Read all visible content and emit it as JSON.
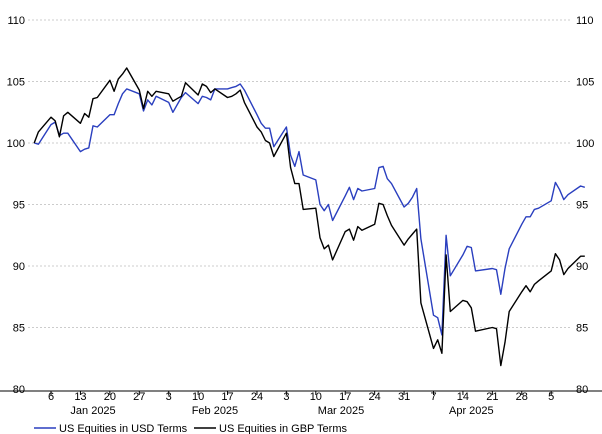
{
  "chart_data": {
    "type": "line",
    "title": "",
    "xlabel": "",
    "ylabel": "",
    "ylim": [
      80,
      110
    ],
    "yticks": [
      80,
      85,
      90,
      95,
      100,
      105,
      110
    ],
    "grid": true,
    "legend": "bottom-left",
    "x_range": [
      "2025-01-01",
      "2025-05-09"
    ],
    "x_ticks": [
      {
        "date": "2025-01-06",
        "label": "6"
      },
      {
        "date": "2025-01-13",
        "label": "13"
      },
      {
        "date": "2025-01-20",
        "label": "20"
      },
      {
        "date": "2025-01-27",
        "label": "27"
      },
      {
        "date": "2025-02-03",
        "label": "3"
      },
      {
        "date": "2025-02-10",
        "label": "10"
      },
      {
        "date": "2025-02-17",
        "label": "17"
      },
      {
        "date": "2025-02-24",
        "label": "24"
      },
      {
        "date": "2025-03-03",
        "label": "3"
      },
      {
        "date": "2025-03-10",
        "label": "10"
      },
      {
        "date": "2025-03-17",
        "label": "17"
      },
      {
        "date": "2025-03-24",
        "label": "24"
      },
      {
        "date": "2025-03-31",
        "label": "31"
      },
      {
        "date": "2025-04-07",
        "label": "7"
      },
      {
        "date": "2025-04-14",
        "label": "14"
      },
      {
        "date": "2025-04-21",
        "label": "21"
      },
      {
        "date": "2025-04-28",
        "label": "28"
      },
      {
        "date": "2025-05-05",
        "label": "5"
      }
    ],
    "month_labels": [
      {
        "date": "2025-01-16",
        "label": "Jan 2025"
      },
      {
        "date": "2025-02-14",
        "label": "Feb 2025"
      },
      {
        "date": "2025-03-16",
        "label": "Mar 2025"
      },
      {
        "date": "2025-04-16",
        "label": "Apr 2025"
      }
    ],
    "series": [
      {
        "name": "US Equities in USD Terms",
        "color": "#2a3fbf",
        "points": [
          [
            "2025-01-02",
            100.0
          ],
          [
            "2025-01-03",
            99.9
          ],
          [
            "2025-01-06",
            101.5
          ],
          [
            "2025-01-07",
            101.7
          ],
          [
            "2025-01-08",
            100.6
          ],
          [
            "2025-01-09",
            100.8
          ],
          [
            "2025-01-10",
            100.8
          ],
          [
            "2025-01-13",
            99.3
          ],
          [
            "2025-01-14",
            99.5
          ],
          [
            "2025-01-15",
            99.6
          ],
          [
            "2025-01-16",
            101.4
          ],
          [
            "2025-01-17",
            101.3
          ],
          [
            "2025-01-20",
            102.3
          ],
          [
            "2025-01-21",
            102.3
          ],
          [
            "2025-01-22",
            103.2
          ],
          [
            "2025-01-23",
            104.0
          ],
          [
            "2025-01-24",
            104.4
          ],
          [
            "2025-01-27",
            104.0
          ],
          [
            "2025-01-28",
            102.6
          ],
          [
            "2025-01-29",
            103.5
          ],
          [
            "2025-01-30",
            103.1
          ],
          [
            "2025-01-31",
            103.8
          ],
          [
            "2025-02-03",
            103.3
          ],
          [
            "2025-02-04",
            102.5
          ],
          [
            "2025-02-05",
            103.1
          ],
          [
            "2025-02-06",
            103.7
          ],
          [
            "2025-02-07",
            104.1
          ],
          [
            "2025-02-10",
            103.2
          ],
          [
            "2025-02-11",
            103.8
          ],
          [
            "2025-02-12",
            103.7
          ],
          [
            "2025-02-13",
            103.5
          ],
          [
            "2025-02-14",
            104.4
          ],
          [
            "2025-02-17",
            104.4
          ],
          [
            "2025-02-18",
            104.5
          ],
          [
            "2025-02-19",
            104.6
          ],
          [
            "2025-02-20",
            104.8
          ],
          [
            "2025-02-21",
            104.3
          ],
          [
            "2025-02-24",
            102.3
          ],
          [
            "2025-02-25",
            101.6
          ],
          [
            "2025-02-26",
            101.2
          ],
          [
            "2025-02-27",
            101.2
          ],
          [
            "2025-02-28",
            99.7
          ],
          [
            "2025-03-03",
            101.3
          ],
          [
            "2025-03-04",
            99.0
          ],
          [
            "2025-03-05",
            98.1
          ],
          [
            "2025-03-06",
            99.3
          ],
          [
            "2025-03-07",
            97.4
          ],
          [
            "2025-03-10",
            97.0
          ],
          [
            "2025-03-11",
            95.0
          ],
          [
            "2025-03-12",
            94.5
          ],
          [
            "2025-03-13",
            95.0
          ],
          [
            "2025-03-14",
            93.7
          ],
          [
            "2025-03-17",
            95.7
          ],
          [
            "2025-03-18",
            96.4
          ],
          [
            "2025-03-19",
            95.4
          ],
          [
            "2025-03-20",
            96.3
          ],
          [
            "2025-03-21",
            96.1
          ],
          [
            "2025-03-24",
            96.3
          ],
          [
            "2025-03-25",
            98.0
          ],
          [
            "2025-03-26",
            98.1
          ],
          [
            "2025-03-27",
            97.1
          ],
          [
            "2025-03-28",
            96.7
          ],
          [
            "2025-03-31",
            94.8
          ],
          [
            "2025-04-01",
            95.1
          ],
          [
            "2025-04-02",
            95.6
          ],
          [
            "2025-04-03",
            96.3
          ],
          [
            "2025-04-04",
            92.2
          ],
          [
            "2025-04-07",
            86.0
          ],
          [
            "2025-04-08",
            85.8
          ],
          [
            "2025-04-09",
            84.4
          ],
          [
            "2025-04-10",
            92.5
          ],
          [
            "2025-04-11",
            89.2
          ],
          [
            "2025-04-14",
            90.9
          ],
          [
            "2025-04-15",
            91.6
          ],
          [
            "2025-04-16",
            91.5
          ],
          [
            "2025-04-17",
            89.6
          ],
          [
            "2025-04-21",
            89.8
          ],
          [
            "2025-04-22",
            89.7
          ],
          [
            "2025-04-23",
            87.7
          ],
          [
            "2025-04-24",
            89.8
          ],
          [
            "2025-04-25",
            91.4
          ],
          [
            "2025-04-28",
            93.4
          ],
          [
            "2025-04-29",
            94.0
          ],
          [
            "2025-04-30",
            94.0
          ],
          [
            "2025-05-01",
            94.6
          ],
          [
            "2025-05-02",
            94.7
          ],
          [
            "2025-05-05",
            95.3
          ],
          [
            "2025-05-06",
            96.8
          ],
          [
            "2025-05-07",
            96.2
          ],
          [
            "2025-05-08",
            95.4
          ],
          [
            "2025-05-09",
            95.8
          ],
          [
            "2025-05-12",
            96.5
          ],
          [
            "2025-05-13",
            96.4
          ]
        ]
      },
      {
        "name": "US Equities in GBP Terms",
        "color": "#000000",
        "points": [
          [
            "2025-01-02",
            100.0
          ],
          [
            "2025-01-03",
            100.9
          ],
          [
            "2025-01-06",
            102.1
          ],
          [
            "2025-01-07",
            101.8
          ],
          [
            "2025-01-08",
            100.5
          ],
          [
            "2025-01-09",
            102.2
          ],
          [
            "2025-01-10",
            102.5
          ],
          [
            "2025-01-13",
            101.6
          ],
          [
            "2025-01-14",
            102.4
          ],
          [
            "2025-01-15",
            102.1
          ],
          [
            "2025-01-16",
            103.6
          ],
          [
            "2025-01-17",
            103.7
          ],
          [
            "2025-01-20",
            105.1
          ],
          [
            "2025-01-21",
            104.2
          ],
          [
            "2025-01-22",
            105.2
          ],
          [
            "2025-01-23",
            105.6
          ],
          [
            "2025-01-24",
            106.1
          ],
          [
            "2025-01-27",
            104.3
          ],
          [
            "2025-01-28",
            102.8
          ],
          [
            "2025-01-29",
            104.2
          ],
          [
            "2025-01-30",
            103.8
          ],
          [
            "2025-01-31",
            104.2
          ],
          [
            "2025-02-03",
            104.0
          ],
          [
            "2025-02-04",
            103.4
          ],
          [
            "2025-02-05",
            103.6
          ],
          [
            "2025-02-06",
            103.8
          ],
          [
            "2025-02-07",
            104.9
          ],
          [
            "2025-02-10",
            103.9
          ],
          [
            "2025-02-11",
            104.8
          ],
          [
            "2025-02-12",
            104.6
          ],
          [
            "2025-02-13",
            104.1
          ],
          [
            "2025-02-14",
            104.4
          ],
          [
            "2025-02-17",
            103.7
          ],
          [
            "2025-02-18",
            103.8
          ],
          [
            "2025-02-19",
            104.0
          ],
          [
            "2025-02-20",
            104.3
          ],
          [
            "2025-02-21",
            103.3
          ],
          [
            "2025-02-24",
            101.3
          ],
          [
            "2025-02-25",
            100.9
          ],
          [
            "2025-02-26",
            100.2
          ],
          [
            "2025-02-27",
            100.0
          ],
          [
            "2025-02-28",
            98.9
          ],
          [
            "2025-03-03",
            100.8
          ],
          [
            "2025-03-04",
            98.0
          ],
          [
            "2025-03-05",
            96.7
          ],
          [
            "2025-03-06",
            96.7
          ],
          [
            "2025-03-07",
            94.6
          ],
          [
            "2025-03-10",
            94.7
          ],
          [
            "2025-03-11",
            92.3
          ],
          [
            "2025-03-12",
            91.4
          ],
          [
            "2025-03-13",
            91.7
          ],
          [
            "2025-03-14",
            90.5
          ],
          [
            "2025-03-17",
            92.8
          ],
          [
            "2025-03-18",
            93.0
          ],
          [
            "2025-03-19",
            92.1
          ],
          [
            "2025-03-20",
            93.2
          ],
          [
            "2025-03-21",
            92.9
          ],
          [
            "2025-03-24",
            93.4
          ],
          [
            "2025-03-25",
            95.1
          ],
          [
            "2025-03-26",
            95.0
          ],
          [
            "2025-03-27",
            94.1
          ],
          [
            "2025-03-28",
            93.3
          ],
          [
            "2025-03-31",
            91.7
          ],
          [
            "2025-04-01",
            92.2
          ],
          [
            "2025-04-02",
            92.6
          ],
          [
            "2025-04-03",
            93.0
          ],
          [
            "2025-04-04",
            87.0
          ],
          [
            "2025-04-07",
            83.3
          ],
          [
            "2025-04-08",
            84.0
          ],
          [
            "2025-04-09",
            82.9
          ],
          [
            "2025-04-10",
            90.9
          ],
          [
            "2025-04-11",
            86.3
          ],
          [
            "2025-04-14",
            87.2
          ],
          [
            "2025-04-15",
            87.1
          ],
          [
            "2025-04-16",
            86.6
          ],
          [
            "2025-04-17",
            84.7
          ],
          [
            "2025-04-21",
            85.0
          ],
          [
            "2025-04-22",
            84.9
          ],
          [
            "2025-04-23",
            81.9
          ],
          [
            "2025-04-24",
            83.8
          ],
          [
            "2025-04-25",
            86.3
          ],
          [
            "2025-04-28",
            87.9
          ],
          [
            "2025-04-29",
            88.4
          ],
          [
            "2025-04-30",
            87.9
          ],
          [
            "2025-05-01",
            88.5
          ],
          [
            "2025-05-02",
            88.8
          ],
          [
            "2025-05-05",
            89.6
          ],
          [
            "2025-05-06",
            91.0
          ],
          [
            "2025-05-07",
            90.5
          ],
          [
            "2025-05-08",
            89.3
          ],
          [
            "2025-05-09",
            89.8
          ],
          [
            "2025-05-12",
            90.8
          ],
          [
            "2025-05-13",
            90.8
          ]
        ]
      }
    ]
  }
}
